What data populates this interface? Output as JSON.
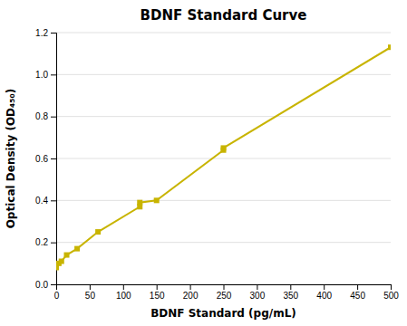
{
  "chart_data": {
    "type": "line",
    "title": "BDNF Standard Curve",
    "x_label": "BDNF Standard (pg/mL)",
    "y_label": "Optical Density (OD₄₅₀)",
    "x": [
      0,
      3.9,
      7.8,
      15.6,
      31.3,
      62.5,
      125,
      125,
      150,
      250,
      250,
      500
    ],
    "values": [
      0.08,
      0.1,
      0.11,
      0.14,
      0.17,
      0.25,
      0.37,
      0.39,
      0.4,
      0.64,
      0.65,
      1.13
    ],
    "color": "#c8b400",
    "marker": "square",
    "xlim": [
      0,
      500
    ],
    "ylim": [
      0,
      1.2
    ],
    "xticks": [
      0,
      50,
      100,
      150,
      200,
      250,
      300,
      350,
      400,
      450,
      500
    ],
    "yticks": [
      {
        "value": 0,
        "label": "0.0"
      },
      0.2,
      0.4,
      0.6,
      0.8,
      {
        "value": 1.0,
        "label": "1.0"
      },
      1.2
    ],
    "grid": "y"
  }
}
